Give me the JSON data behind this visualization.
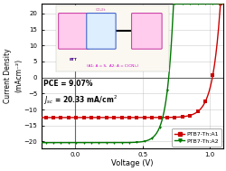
{
  "title": "",
  "xlabel": "Voltage (V)",
  "ylabel": "Current Density\n(mAcm⁻²)",
  "xlim": [
    -0.25,
    1.1
  ],
  "ylim": [
    -22,
    23
  ],
  "yticks": [
    -20,
    -15,
    -10,
    -5,
    0,
    5,
    10,
    15,
    20
  ],
  "xticks": [
    0.0,
    0.5,
    1.0
  ],
  "pce_text": "PCE = 9.07%",
  "jsc_text": "$J_{sc}$ = 20.33 mA/cm$^2$",
  "curve1": {
    "label": "PTB7-Th:A1",
    "color": "#cc0000",
    "jsc": -12.5,
    "voc": 1.02,
    "n": 2.2
  },
  "curve2": {
    "label": "PTB7-Th:A2",
    "color": "#007700",
    "jsc": -20.33,
    "voc": 0.695,
    "n": 1.8
  },
  "bg_color": "#ffffff",
  "grid_color": "#888888",
  "inset_bg": "#faf8f0"
}
